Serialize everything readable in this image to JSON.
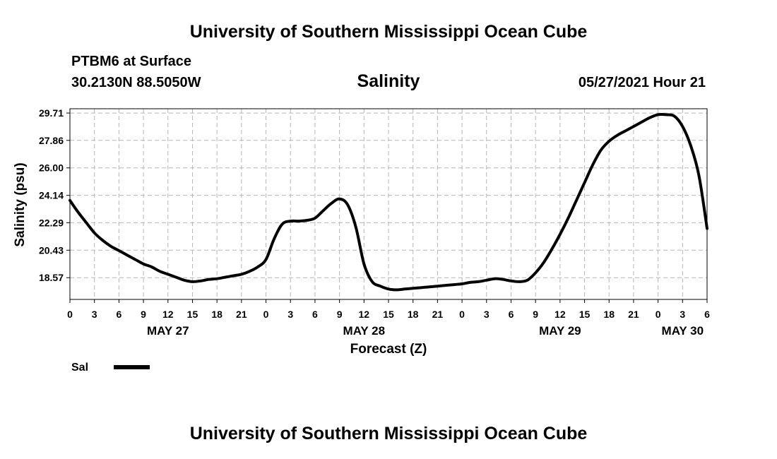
{
  "header": {
    "title": "University of Southern Mississippi Ocean Cube",
    "station": "PTBM6 at Surface",
    "coords": "30.2130N  88.5050W",
    "chart_title": "Salinity",
    "datetime": "05/27/2021 Hour 21"
  },
  "footer": {
    "title": "University of Southern Mississippi Ocean Cube"
  },
  "chart_data": {
    "type": "line",
    "title": "Salinity",
    "xlabel": "Forecast (Z)",
    "ylabel": "Salinity (psu)",
    "ylim": [
      17.1,
      30.0
    ],
    "xlim": [
      0,
      78
    ],
    "x_unit": "hours since May 27 00Z",
    "y_ticks": [
      "18.57",
      "20.43",
      "22.29",
      "24.14",
      "26.00",
      "27.86",
      "29.71"
    ],
    "x_ticks": [
      "0",
      "3",
      "6",
      "9",
      "12",
      "15",
      "18",
      "21",
      "0",
      "3",
      "6",
      "9",
      "12",
      "15",
      "18",
      "21",
      "0",
      "3",
      "6",
      "9",
      "12",
      "15",
      "18",
      "21",
      "0",
      "3",
      "6"
    ],
    "day_labels": [
      {
        "label": "MAY 27",
        "hour": 12
      },
      {
        "label": "MAY 28",
        "hour": 36
      },
      {
        "label": "MAY 29",
        "hour": 60
      },
      {
        "label": "MAY 30",
        "hour": 75
      }
    ],
    "grid": true,
    "legend": {
      "position": "bottom-left",
      "entries": [
        "Sal"
      ]
    },
    "series": [
      {
        "name": "Sal",
        "color": "#000000",
        "x": [
          0,
          1,
          2,
          3,
          4,
          5,
          6,
          7,
          8,
          9,
          10,
          11,
          12,
          13,
          14,
          15,
          16,
          17,
          18,
          19,
          20,
          21,
          22,
          23,
          24,
          25,
          26,
          27,
          28,
          29,
          30,
          31,
          32,
          33,
          34,
          35,
          36,
          37,
          38,
          39,
          40,
          41,
          42,
          43,
          44,
          45,
          46,
          47,
          48,
          49,
          50,
          51,
          52,
          53,
          54,
          55,
          56,
          57,
          58,
          59,
          60,
          61,
          62,
          63,
          64,
          65,
          66,
          67,
          68,
          69,
          70,
          71,
          72,
          73,
          74,
          75,
          76,
          77,
          78
        ],
        "y": [
          23.8,
          23.0,
          22.3,
          21.6,
          21.1,
          20.7,
          20.4,
          20.1,
          19.8,
          19.5,
          19.3,
          19.0,
          18.8,
          18.6,
          18.4,
          18.3,
          18.35,
          18.45,
          18.5,
          18.6,
          18.7,
          18.8,
          19.0,
          19.3,
          19.8,
          21.2,
          22.2,
          22.4,
          22.4,
          22.45,
          22.6,
          23.1,
          23.6,
          23.9,
          23.5,
          22.0,
          19.5,
          18.3,
          18.0,
          17.8,
          17.75,
          17.8,
          17.85,
          17.9,
          17.95,
          18.0,
          18.05,
          18.1,
          18.15,
          18.25,
          18.3,
          18.4,
          18.5,
          18.45,
          18.35,
          18.3,
          18.4,
          18.9,
          19.6,
          20.5,
          21.5,
          22.6,
          23.8,
          25.0,
          26.2,
          27.2,
          27.8,
          28.2,
          28.5,
          28.8,
          29.1,
          29.4,
          29.6,
          29.6,
          29.5,
          28.8,
          27.5,
          25.5,
          21.9
        ]
      }
    ]
  }
}
